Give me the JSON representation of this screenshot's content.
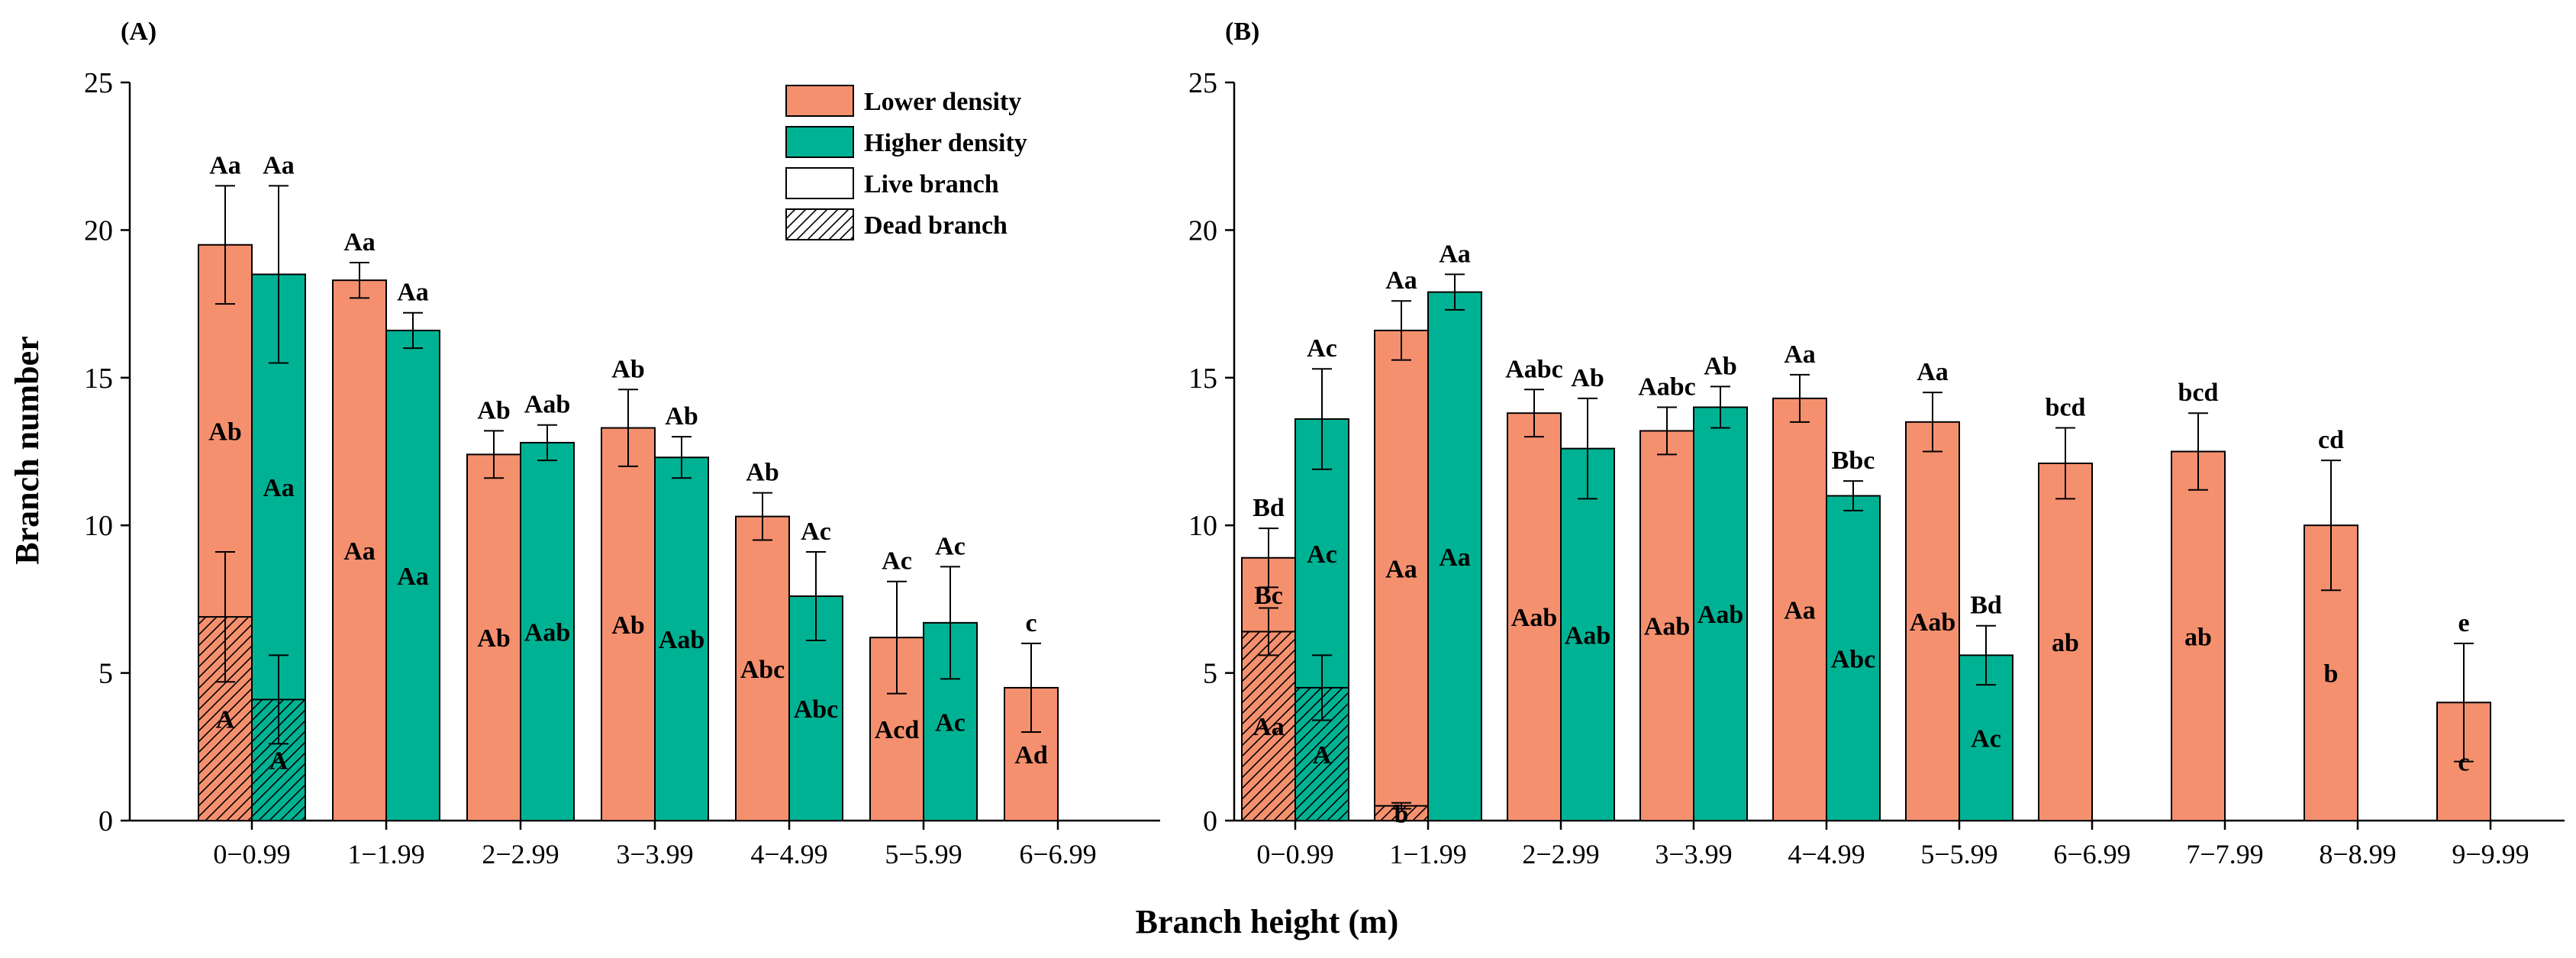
{
  "figure": {
    "shared_xlabel": "Branch height (m)",
    "legend": {
      "lower_label": "Lower density",
      "higher_label": "Higher density",
      "live_label": "Live branch",
      "dead_label": "Dead branch"
    },
    "colors": {
      "lower": "#F5906F",
      "higher": "#00B294",
      "axis": "#000000",
      "background": "#FFFFFF"
    }
  },
  "chart_data": [
    {
      "panel": "(A)",
      "type": "bar",
      "stacked": true,
      "ylabel": "Branch number",
      "ylim": [
        0,
        25
      ],
      "yticks": [
        0,
        5,
        10,
        15,
        20,
        25
      ],
      "categories": [
        "0−0.99",
        "1−1.99",
        "2−2.99",
        "3−3.99",
        "4−4.99",
        "5−5.99",
        "6−6.99"
      ],
      "series": [
        {
          "name": "Lower density",
          "total": [
            19.5,
            18.3,
            12.4,
            13.3,
            10.3,
            6.2,
            4.5
          ],
          "error": [
            2.0,
            0.6,
            0.8,
            1.3,
            0.8,
            1.9,
            1.5
          ],
          "dead": [
            6.9,
            0,
            0,
            0,
            0,
            0,
            0
          ],
          "dead_error": [
            2.2,
            0,
            0,
            0,
            0,
            0,
            0
          ],
          "top_labels": [
            "Aa",
            "Aa",
            "Ab",
            "Ab",
            "Ab",
            "Ac",
            "c"
          ],
          "live_labels": [
            "Ab",
            "Aa",
            "Ab",
            "Ab",
            "Abc",
            "Acd",
            "Ad"
          ],
          "dead_labels": [
            "A",
            "",
            "",
            "",
            "",
            "",
            ""
          ]
        },
        {
          "name": "Higher density",
          "total": [
            18.5,
            16.6,
            12.8,
            12.3,
            7.6,
            6.7,
            null
          ],
          "error": [
            3.0,
            0.6,
            0.6,
            0.7,
            1.5,
            1.9,
            null
          ],
          "dead": [
            4.1,
            0,
            0,
            0,
            0,
            0,
            null
          ],
          "dead_error": [
            1.5,
            0,
            0,
            0,
            0,
            0,
            null
          ],
          "top_labels": [
            "Aa",
            "Aa",
            "Aab",
            "Ab",
            "Ac",
            "Ac",
            ""
          ],
          "live_labels": [
            "Aa",
            "Aa",
            "Aab",
            "Aab",
            "Abc",
            "Ac",
            ""
          ],
          "dead_labels": [
            "A",
            "",
            "",
            "",
            "",
            "",
            ""
          ]
        }
      ]
    },
    {
      "panel": "(B)",
      "type": "bar",
      "stacked": true,
      "ylabel": "",
      "ylim": [
        0,
        25
      ],
      "yticks": [
        0,
        5,
        10,
        15,
        20,
        25
      ],
      "categories": [
        "0−0.99",
        "1−1.99",
        "2−2.99",
        "3−3.99",
        "4−4.99",
        "5−5.99",
        "6−6.99",
        "7−7.99",
        "8−8.99",
        "9−9.99"
      ],
      "series": [
        {
          "name": "Lower density",
          "total": [
            8.9,
            16.6,
            13.8,
            13.2,
            14.3,
            13.5,
            12.1,
            12.5,
            10.0,
            4.0
          ],
          "error": [
            1.0,
            1.0,
            0.8,
            0.8,
            0.8,
            1.0,
            1.2,
            1.3,
            2.2,
            2.0
          ],
          "dead": [
            6.4,
            0.5,
            0,
            0,
            0,
            0,
            0,
            0,
            0,
            0
          ],
          "dead_error": [
            0.8,
            0.1,
            0,
            0,
            0,
            0,
            0,
            0,
            0,
            0
          ],
          "top_labels": [
            "Bd",
            "Aa",
            "Aabc",
            "Aabc",
            "Aa",
            "Aa",
            "bcd",
            "bcd",
            "cd",
            "e"
          ],
          "live_labels": [
            "Bc",
            "Aa",
            "Aab",
            "Aab",
            "Aa",
            "Aab",
            "ab",
            "ab",
            "b",
            "c"
          ],
          "dead_labels": [
            "Aa",
            "b",
            "",
            "",
            "",
            "",
            "",
            "",
            "",
            ""
          ]
        },
        {
          "name": "Higher density",
          "total": [
            13.6,
            17.9,
            12.6,
            14.0,
            11.0,
            5.6,
            null,
            null,
            null,
            null
          ],
          "error": [
            1.7,
            0.6,
            1.7,
            0.7,
            0.5,
            1.0,
            null,
            null,
            null,
            null
          ],
          "dead": [
            4.5,
            0,
            0,
            0,
            0,
            0,
            null,
            null,
            null,
            null
          ],
          "dead_error": [
            1.1,
            0,
            0,
            0,
            0,
            0,
            null,
            null,
            null,
            null
          ],
          "top_labels": [
            "Ac",
            "Aa",
            "Ab",
            "Ab",
            "Bbc",
            "Bd",
            "",
            "",
            "",
            ""
          ],
          "live_labels": [
            "Ac",
            "Aa",
            "Aab",
            "Aab",
            "Abc",
            "Ac",
            "",
            "",
            "",
            ""
          ],
          "dead_labels": [
            "A",
            "",
            "",
            "",
            "",
            "",
            "",
            "",
            "",
            ""
          ]
        }
      ]
    }
  ]
}
